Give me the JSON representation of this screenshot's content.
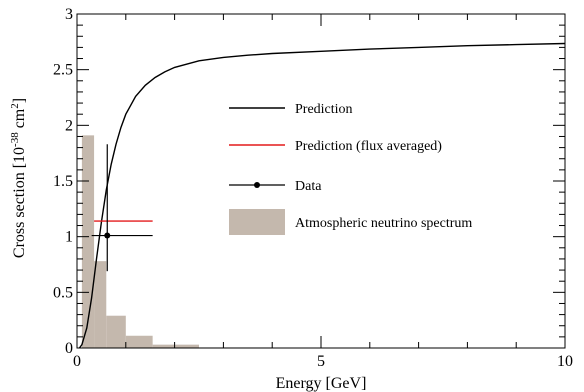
{
  "chart_data": {
    "type": "line",
    "xlabel": "Energy [GeV]",
    "ylabel_base": "Cross section [10",
    "ylabel_exp": "-38",
    "ylabel_unit": " cm",
    "ylabel_exp2": "2",
    "ylabel_end": "]",
    "xlim": [
      0,
      10
    ],
    "ylim": [
      0,
      3
    ],
    "xticks": [
      {
        "v": 0,
        "label": "0"
      },
      {
        "v": 5,
        "label": "5"
      },
      {
        "v": 10,
        "label": "10"
      }
    ],
    "yticks": [
      {
        "v": 0,
        "label": "0"
      },
      {
        "v": 0.5,
        "label": "0.5"
      },
      {
        "v": 1,
        "label": "1"
      },
      {
        "v": 1.5,
        "label": "1.5"
      },
      {
        "v": 2,
        "label": "2"
      },
      {
        "v": 2.5,
        "label": "2.5"
      },
      {
        "v": 3,
        "label": "3"
      }
    ],
    "xminor_step": 1,
    "yminor_step": 0.1,
    "grid": false,
    "legend_position": "center-right",
    "series": [
      {
        "name": "Prediction",
        "kind": "line",
        "color": "#000000",
        "x": [
          0.05,
          0.1,
          0.2,
          0.3,
          0.4,
          0.5,
          0.6,
          0.7,
          0.8,
          0.9,
          1.0,
          1.2,
          1.4,
          1.6,
          1.8,
          2.0,
          2.5,
          3.0,
          3.5,
          4.0,
          5.0,
          6.0,
          7.0,
          8.0,
          9.0,
          10.0
        ],
        "y": [
          0.0,
          0.03,
          0.18,
          0.45,
          0.8,
          1.13,
          1.42,
          1.65,
          1.83,
          1.98,
          2.1,
          2.26,
          2.36,
          2.43,
          2.48,
          2.52,
          2.58,
          2.61,
          2.63,
          2.645,
          2.665,
          2.685,
          2.7,
          2.715,
          2.725,
          2.735
        ]
      },
      {
        "name": "Prediction (flux averaged)",
        "kind": "hline",
        "color": "#e41a1c",
        "x_range": [
          0.35,
          1.55
        ],
        "y": 1.14
      },
      {
        "name": "Data",
        "kind": "point",
        "color": "#000000",
        "x": 0.62,
        "y": 1.01,
        "xerr": [
          0.3,
          1.55
        ],
        "yerr": [
          0.69,
          1.83
        ]
      },
      {
        "name": "Atmospheric neutrino spectrum",
        "kind": "histogram",
        "color": "#c4b8ad",
        "bins": [
          {
            "x0": 0.1,
            "x1": 0.35,
            "v": 1.91
          },
          {
            "x0": 0.35,
            "x1": 0.6,
            "v": 0.78
          },
          {
            "x0": 0.6,
            "x1": 1.0,
            "v": 0.29
          },
          {
            "x0": 1.0,
            "x1": 1.55,
            "v": 0.11
          },
          {
            "x0": 1.55,
            "x1": 2.5,
            "v": 0.03
          },
          {
            "x0": 2.5,
            "x1": 4.0,
            "v": 0.005
          }
        ]
      }
    ]
  }
}
